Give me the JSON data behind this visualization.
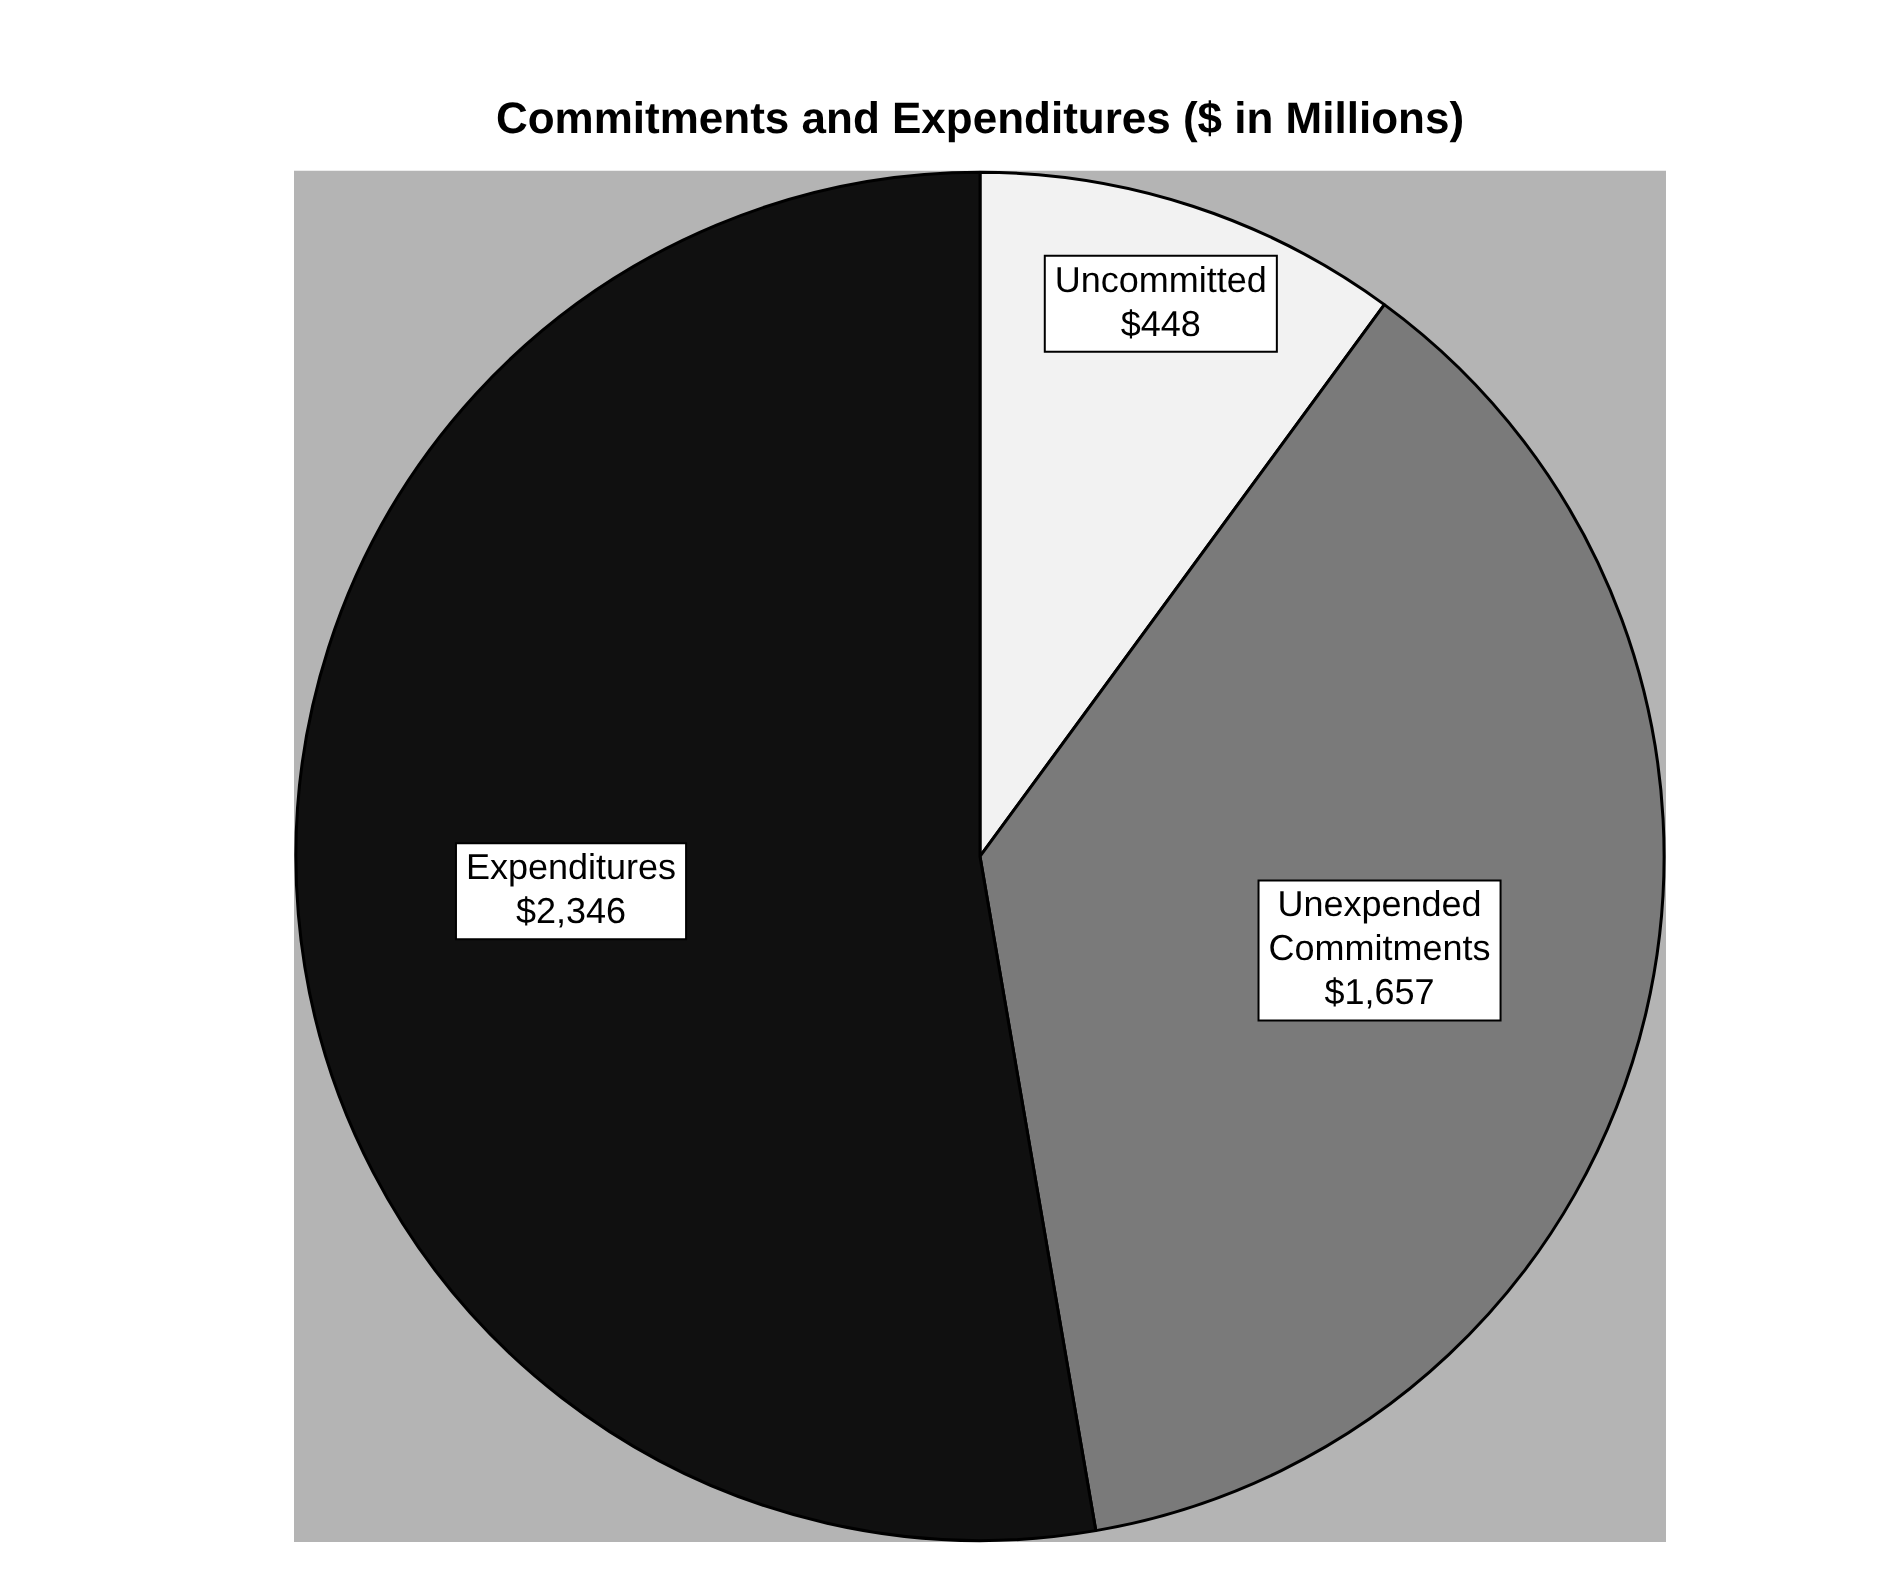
{
  "chart_data": {
    "type": "pie",
    "title": "Commitments and Expenditures ($ in Millions)",
    "categories": [
      "Uncommitted",
      "Unexpended Commitments",
      "Expenditures"
    ],
    "values": [
      448,
      1657,
      2346
    ],
    "value_labels": [
      "$448",
      "$1,657",
      "$2,346"
    ],
    "colors": [
      "#f2f2f2",
      "#7a7a7a",
      "#101010"
    ]
  }
}
